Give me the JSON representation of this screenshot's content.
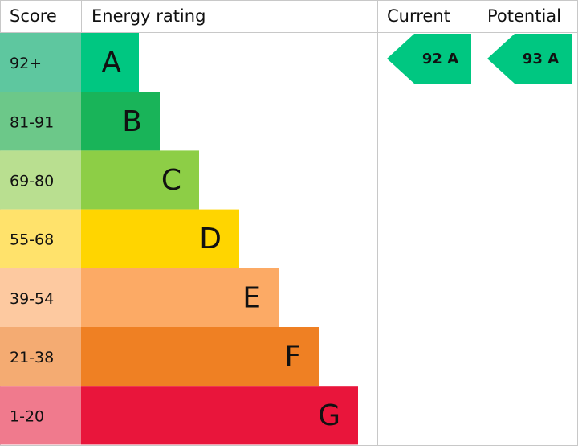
{
  "header": {
    "score": "Score",
    "rating": "Energy rating",
    "current": "Current",
    "potential": "Potential"
  },
  "bands": [
    {
      "score": "92+",
      "letter": "A",
      "color": "#00c781",
      "score_color": "#5ec79f"
    },
    {
      "score": "81-91",
      "letter": "B",
      "color": "#19b459",
      "score_color": "#6cc889"
    },
    {
      "score": "69-80",
      "letter": "C",
      "color": "#8dce46",
      "score_color": "#b9df90"
    },
    {
      "score": "55-68",
      "letter": "D",
      "color": "#ffd500",
      "score_color": "#ffe26b"
    },
    {
      "score": "39-54",
      "letter": "E",
      "color": "#fcaa65",
      "score_color": "#fdc9a0"
    },
    {
      "score": "21-38",
      "letter": "F",
      "color": "#ef8023",
      "score_color": "#f4ab72"
    },
    {
      "score": "1-20",
      "letter": "G",
      "color": "#e9153b",
      "score_color": "#f07a8d"
    }
  ],
  "current": {
    "label": "92 A",
    "color": "#00c781"
  },
  "potential": {
    "label": "93 A",
    "color": "#00c781"
  }
}
